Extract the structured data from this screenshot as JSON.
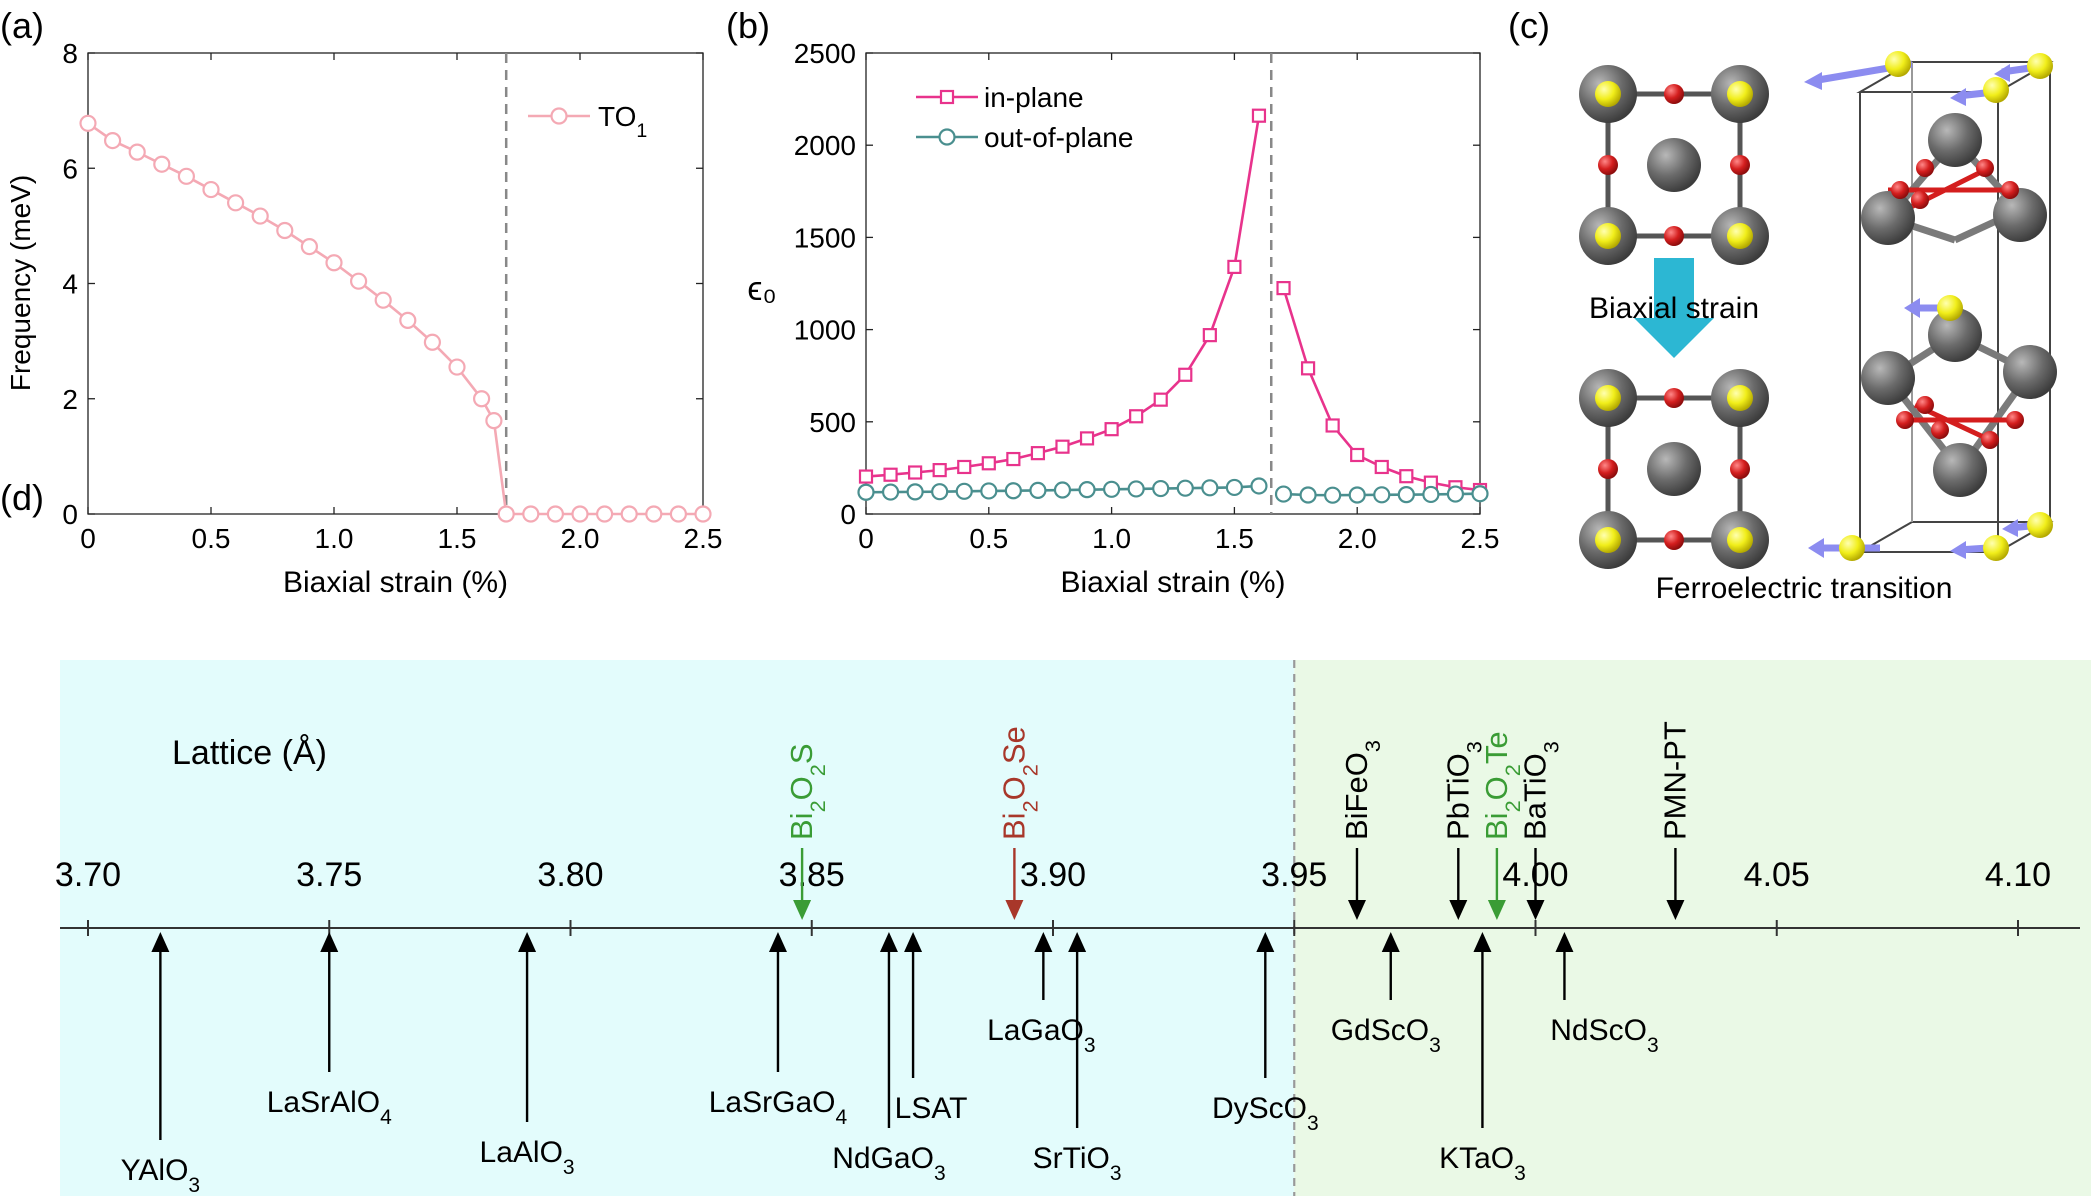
{
  "chart_data": [
    {
      "panel": "(a)",
      "type": "line",
      "xlabel": "Biaxial strain (%)",
      "ylabel": "Frequency (meV)",
      "xlim": [
        0,
        2.5
      ],
      "ylim": [
        0,
        8
      ],
      "xticks": [
        "0",
        "0.5",
        "1.0",
        "1.5",
        "2.0",
        "2.5"
      ],
      "yticks": [
        "0",
        "2",
        "4",
        "6",
        "8"
      ],
      "vline": 1.7,
      "legend": "top-right",
      "series": [
        {
          "name": "TO",
          "name_sub": "1",
          "color": "#f4a9b4",
          "marker": "circle",
          "x": [
            0,
            0.1,
            0.2,
            0.3,
            0.4,
            0.5,
            0.6,
            0.7,
            0.8,
            0.9,
            1.0,
            1.1,
            1.2,
            1.3,
            1.4,
            1.5,
            1.6,
            1.65,
            1.7,
            1.8,
            1.9,
            2.0,
            2.1,
            2.2,
            2.3,
            2.4,
            2.5
          ],
          "y": [
            6.78,
            6.48,
            6.28,
            6.07,
            5.86,
            5.63,
            5.4,
            5.17,
            4.92,
            4.64,
            4.36,
            4.04,
            3.71,
            3.36,
            2.98,
            2.55,
            2.0,
            1.62,
            0.0,
            0,
            0,
            0,
            0,
            0,
            0,
            0,
            0
          ]
        }
      ]
    },
    {
      "panel": "(b)",
      "type": "line",
      "xlabel": "Biaxial strain (%)",
      "ylabel": "ϵ₀",
      "xlim": [
        0,
        2.5
      ],
      "ylim": [
        0,
        2500
      ],
      "xticks": [
        "0",
        "0.5",
        "1.0",
        "1.5",
        "2.0",
        "2.5"
      ],
      "yticks": [
        "0",
        "500",
        "1000",
        "1500",
        "2000",
        "2500"
      ],
      "vline": 1.65,
      "legend": "top-left",
      "series": [
        {
          "name": "in-plane",
          "color": "#e8338c",
          "marker": "square",
          "segments": [
            {
              "x": [
                0,
                0.1,
                0.2,
                0.3,
                0.4,
                0.5,
                0.6,
                0.7,
                0.8,
                0.9,
                1.0,
                1.1,
                1.2,
                1.3,
                1.4,
                1.5,
                1.6
              ],
              "y": [
                203,
                213,
                225,
                238,
                255,
                275,
                298,
                330,
                365,
                410,
                460,
                530,
                620,
                755,
                970,
                1340,
                2160
              ]
            },
            {
              "x": [
                1.7,
                1.8,
                1.9,
                2.0,
                2.1,
                2.2,
                2.3,
                2.4,
                2.5
              ],
              "y": [
                1225,
                790,
                480,
                320,
                255,
                205,
                170,
                145,
                130
              ]
            }
          ]
        },
        {
          "name": "out-of-plane",
          "color": "#4a8f8f",
          "marker": "circle",
          "segments": [
            {
              "x": [
                0,
                0.1,
                0.2,
                0.3,
                0.4,
                0.5,
                0.6,
                0.7,
                0.8,
                0.9,
                1.0,
                1.1,
                1.2,
                1.3,
                1.4,
                1.5,
                1.6
              ],
              "y": [
                118,
                119,
                120,
                121,
                123,
                125,
                126,
                128,
                130,
                132,
                134,
                136,
                138,
                140,
                142,
                144,
                152
              ]
            },
            {
              "x": [
                1.7,
                1.8,
                1.9,
                2.0,
                2.1,
                2.2,
                2.3,
                2.4,
                2.5
              ],
              "y": [
                108,
                103,
                102,
                103,
                104,
                105,
                106,
                108,
                110
              ]
            }
          ]
        }
      ]
    },
    {
      "panel": "(d)",
      "type": "number-line",
      "title": "Lattice (Å)",
      "xlim": [
        3.7,
        4.1
      ],
      "ticks": [
        "3.70",
        "3.75",
        "3.80",
        "3.85",
        "3.90",
        "3.95",
        "4.00",
        "4.05",
        "4.10"
      ],
      "boundary": 3.95,
      "region_colors": [
        "#e3fcfc",
        "#eaf9e6"
      ],
      "above": [
        {
          "label": "Bi",
          "sub": "2",
          "rest": "O",
          "sub2": "2",
          "tail": "S",
          "value": 3.848,
          "color": "#3a9c35"
        },
        {
          "label": "Bi",
          "sub": "2",
          "rest": "O",
          "sub2": "2",
          "tail": "Se",
          "value": 3.892,
          "color": "#a8372a"
        },
        {
          "label": "BiFeO",
          "sub": "3",
          "value": 3.963,
          "color": "#000000"
        },
        {
          "label": "PbTiO",
          "sub": "3",
          "value": 3.984,
          "color": "#000000"
        },
        {
          "label": "Bi",
          "sub": "2",
          "rest": "O",
          "sub2": "2",
          "tail": "Te",
          "value": 3.992,
          "color": "#3a9c35"
        },
        {
          "label": "BaTiO",
          "sub": "3",
          "value": 4.0,
          "color": "#000000"
        },
        {
          "label": "PMN-PT",
          "value": 4.029,
          "color": "#000000"
        }
      ],
      "below": [
        {
          "label": "YAlO",
          "sub": "3",
          "value": 3.715
        },
        {
          "label": "LaSrAlO",
          "sub": "4",
          "value": 3.75
        },
        {
          "label": "LaAlO",
          "sub": "3",
          "value": 3.791
        },
        {
          "label": "LaSrGaO",
          "sub": "4",
          "value": 3.843
        },
        {
          "label": "NdGaO",
          "sub": "3",
          "value": 3.866
        },
        {
          "label": "LSAT",
          "value": 3.871
        },
        {
          "label": "LaGaO",
          "sub": "3",
          "value": 3.898
        },
        {
          "label": "SrTiO",
          "sub": "3",
          "value": 3.905
        },
        {
          "label": "DyScO",
          "sub": "3",
          "value": 3.944
        },
        {
          "label": "GdScO",
          "sub": "3",
          "value": 3.97
        },
        {
          "label": "KTaO",
          "sub": "3",
          "value": 3.989
        },
        {
          "label": "NdScO",
          "sub": "3",
          "value": 4.006
        }
      ]
    }
  ],
  "panels": {
    "a_label": "(a)",
    "b_label": "(b)",
    "c_label": "(c)",
    "d_label": "(d)"
  },
  "structure": {
    "arrow_label": "Biaxial strain",
    "caption": "Ferroelectric transition",
    "colors": {
      "atom_gray": "#6b6b6b",
      "atom_yellow": "#f1ee1a",
      "atom_red": "#d41e1e",
      "arrow_cyan": "#2cb7d3",
      "vector_purple": "#8c8cf0"
    }
  }
}
